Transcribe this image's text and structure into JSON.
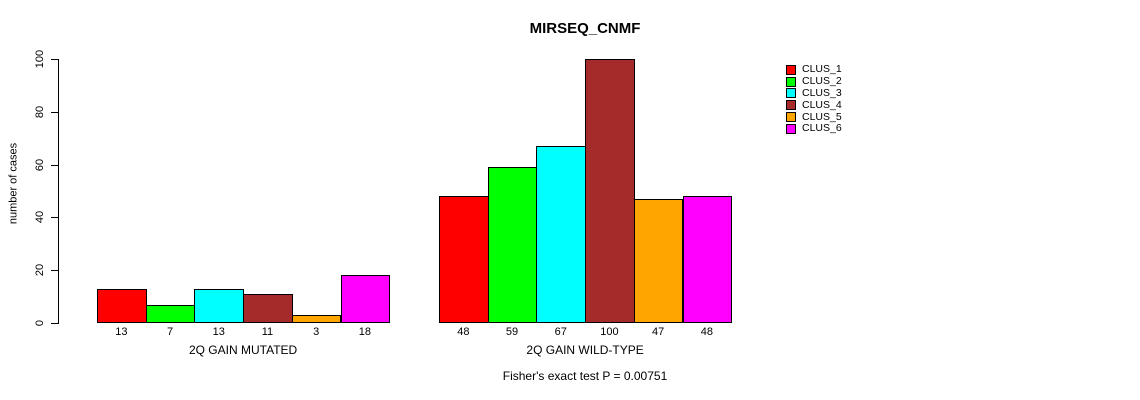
{
  "chart_data": {
    "type": "bar",
    "title": "MIRSEQ_CNMF",
    "ylabel": "number of cases",
    "ylim": [
      0,
      100
    ],
    "yticks": [
      0,
      20,
      40,
      60,
      80,
      100
    ],
    "grid": false,
    "legend_position": "right",
    "categories": [
      "2Q GAIN MUTATED",
      "2Q GAIN WILD-TYPE"
    ],
    "series": [
      {
        "name": "CLUS_1",
        "color": "#FF0000",
        "values": [
          13,
          48
        ]
      },
      {
        "name": "CLUS_2",
        "color": "#00FF00",
        "values": [
          7,
          59
        ]
      },
      {
        "name": "CLUS_3",
        "color": "#00FFFF",
        "values": [
          13,
          67
        ]
      },
      {
        "name": "CLUS_4",
        "color": "#A52A2A",
        "values": [
          11,
          100
        ]
      },
      {
        "name": "CLUS_5",
        "color": "#FFA500",
        "values": [
          3,
          47
        ]
      },
      {
        "name": "CLUS_6",
        "color": "#FF00FF",
        "values": [
          18,
          48
        ]
      }
    ],
    "annotation": "Fisher's exact test P = 0.00751"
  }
}
